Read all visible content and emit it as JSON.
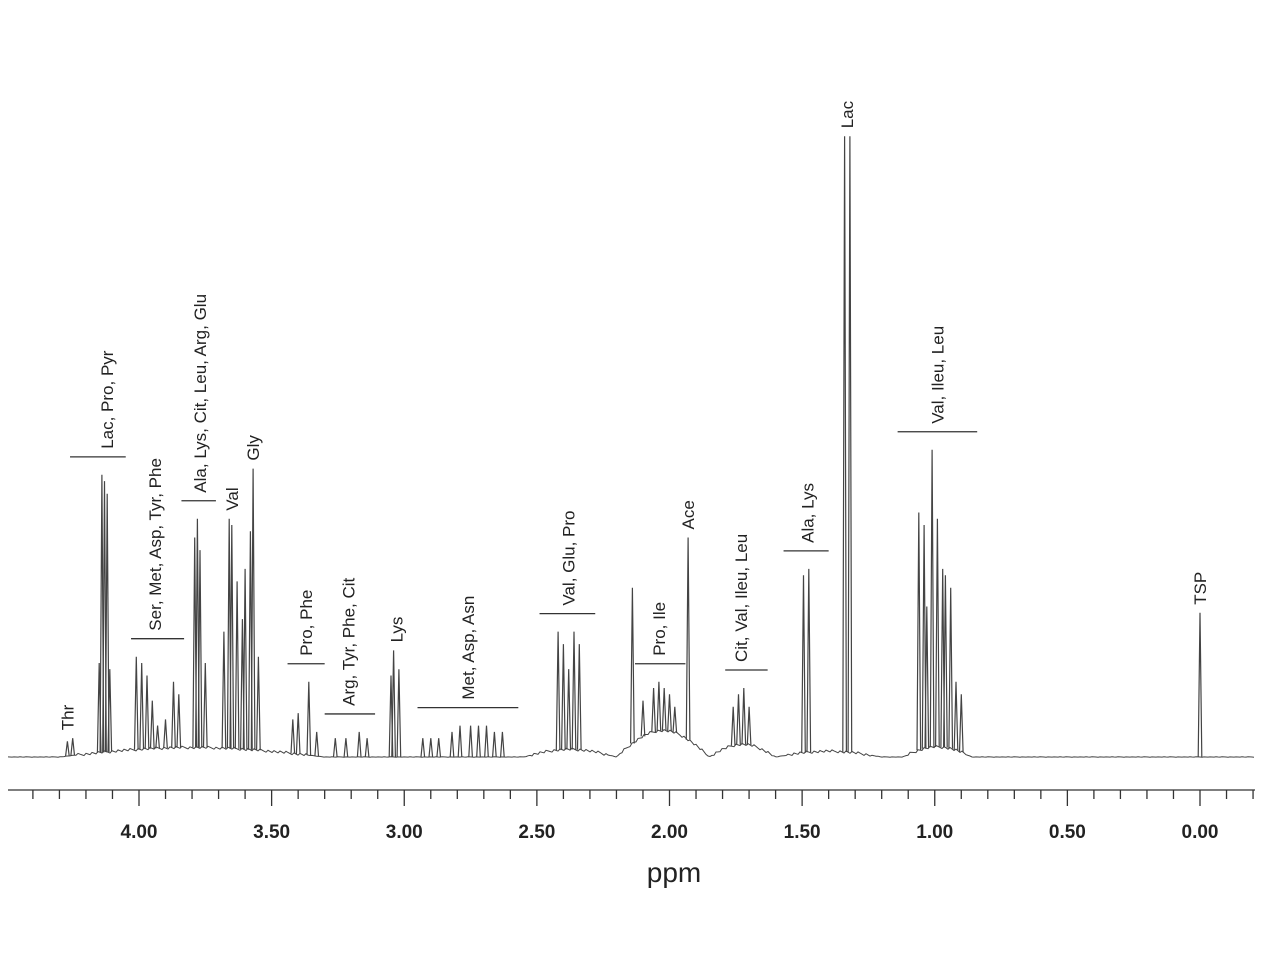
{
  "chart_data": {
    "type": "line",
    "xlabel": "ppm",
    "ylabel": "",
    "x_reversed": true,
    "xlim": [
      4.5,
      -0.2
    ],
    "ylim": [
      0,
      100
    ],
    "grid": false,
    "legend": "none",
    "colors": {
      "trace": "#444444",
      "axis": "#333333",
      "text": "#222222"
    },
    "ticks": [
      {
        "value": 4.0,
        "label": "4.00"
      },
      {
        "value": 3.5,
        "label": "3.50"
      },
      {
        "value": 3.0,
        "label": "3.00"
      },
      {
        "value": 2.5,
        "label": "2.50"
      },
      {
        "value": 2.0,
        "label": "2.00"
      },
      {
        "value": 1.5,
        "label": "1.50"
      },
      {
        "value": 1.0,
        "label": "1.00"
      },
      {
        "value": 0.5,
        "label": "0.50"
      },
      {
        "value": 0.0,
        "label": "0.00"
      }
    ],
    "peaks": [
      {
        "ppm": 4.27,
        "h": 2.5
      },
      {
        "ppm": 4.25,
        "h": 3
      },
      {
        "ppm": 4.15,
        "h": 15
      },
      {
        "ppm": 4.14,
        "h": 45
      },
      {
        "ppm": 4.13,
        "h": 44
      },
      {
        "ppm": 4.12,
        "h": 42
      },
      {
        "ppm": 4.11,
        "h": 14
      },
      {
        "ppm": 4.01,
        "h": 16
      },
      {
        "ppm": 3.99,
        "h": 15
      },
      {
        "ppm": 3.97,
        "h": 13
      },
      {
        "ppm": 3.95,
        "h": 9
      },
      {
        "ppm": 3.93,
        "h": 5
      },
      {
        "ppm": 3.9,
        "h": 6
      },
      {
        "ppm": 3.87,
        "h": 12
      },
      {
        "ppm": 3.85,
        "h": 10
      },
      {
        "ppm": 3.79,
        "h": 35
      },
      {
        "ppm": 3.78,
        "h": 38
      },
      {
        "ppm": 3.77,
        "h": 33
      },
      {
        "ppm": 3.75,
        "h": 15
      },
      {
        "ppm": 3.68,
        "h": 20
      },
      {
        "ppm": 3.66,
        "h": 38
      },
      {
        "ppm": 3.65,
        "h": 37
      },
      {
        "ppm": 3.63,
        "h": 28
      },
      {
        "ppm": 3.61,
        "h": 22
      },
      {
        "ppm": 3.6,
        "h": 30
      },
      {
        "ppm": 3.58,
        "h": 36
      },
      {
        "ppm": 3.57,
        "h": 46
      },
      {
        "ppm": 3.55,
        "h": 16
      },
      {
        "ppm": 3.42,
        "h": 6
      },
      {
        "ppm": 3.4,
        "h": 7
      },
      {
        "ppm": 3.36,
        "h": 12
      },
      {
        "ppm": 3.33,
        "h": 4
      },
      {
        "ppm": 3.26,
        "h": 3
      },
      {
        "ppm": 3.22,
        "h": 3
      },
      {
        "ppm": 3.17,
        "h": 4
      },
      {
        "ppm": 3.14,
        "h": 3
      },
      {
        "ppm": 3.05,
        "h": 13
      },
      {
        "ppm": 3.04,
        "h": 17
      },
      {
        "ppm": 3.02,
        "h": 14
      },
      {
        "ppm": 2.93,
        "h": 3
      },
      {
        "ppm": 2.9,
        "h": 3
      },
      {
        "ppm": 2.87,
        "h": 3
      },
      {
        "ppm": 2.82,
        "h": 4
      },
      {
        "ppm": 2.79,
        "h": 5
      },
      {
        "ppm": 2.75,
        "h": 5
      },
      {
        "ppm": 2.72,
        "h": 5
      },
      {
        "ppm": 2.69,
        "h": 5
      },
      {
        "ppm": 2.66,
        "h": 4
      },
      {
        "ppm": 2.63,
        "h": 4
      },
      {
        "ppm": 2.42,
        "h": 20
      },
      {
        "ppm": 2.4,
        "h": 18
      },
      {
        "ppm": 2.38,
        "h": 14
      },
      {
        "ppm": 2.36,
        "h": 20
      },
      {
        "ppm": 2.34,
        "h": 18
      },
      {
        "ppm": 2.14,
        "h": 27
      },
      {
        "ppm": 2.1,
        "h": 9
      },
      {
        "ppm": 2.06,
        "h": 11
      },
      {
        "ppm": 2.04,
        "h": 12
      },
      {
        "ppm": 2.02,
        "h": 11
      },
      {
        "ppm": 2.0,
        "h": 10
      },
      {
        "ppm": 1.98,
        "h": 8
      },
      {
        "ppm": 1.93,
        "h": 35
      },
      {
        "ppm": 1.76,
        "h": 8
      },
      {
        "ppm": 1.74,
        "h": 10
      },
      {
        "ppm": 1.72,
        "h": 11
      },
      {
        "ppm": 1.7,
        "h": 8
      },
      {
        "ppm": 1.495,
        "h": 29
      },
      {
        "ppm": 1.475,
        "h": 30
      },
      {
        "ppm": 1.34,
        "h": 99
      },
      {
        "ppm": 1.32,
        "h": 99
      },
      {
        "ppm": 1.06,
        "h": 39
      },
      {
        "ppm": 1.04,
        "h": 37
      },
      {
        "ppm": 1.03,
        "h": 24
      },
      {
        "ppm": 1.01,
        "h": 49
      },
      {
        "ppm": 0.99,
        "h": 38
      },
      {
        "ppm": 0.97,
        "h": 30
      },
      {
        "ppm": 0.96,
        "h": 29
      },
      {
        "ppm": 0.94,
        "h": 27
      },
      {
        "ppm": 0.92,
        "h": 12
      },
      {
        "ppm": 0.9,
        "h": 10
      },
      {
        "ppm": 0.0,
        "h": 23
      }
    ],
    "annotations": [
      {
        "text": "Thr",
        "ppm": 4.27,
        "bracket": null
      },
      {
        "text": "Lac, Pro, Pyr",
        "ppm": 4.12,
        "bracket": [
          4.26,
          4.05
        ]
      },
      {
        "text": "Ser, Met, Asp, Tyr, Phe",
        "ppm": 3.94,
        "bracket": [
          4.03,
          3.83
        ]
      },
      {
        "text": "Ala, Lys, Cit, Leu, Arg, Glu",
        "ppm": 3.77,
        "bracket": [
          3.84,
          3.71
        ]
      },
      {
        "text": "Val",
        "ppm": 3.65,
        "bracket": null
      },
      {
        "text": "Gly",
        "ppm": 3.57,
        "bracket": null
      },
      {
        "text": "Pro, Phe",
        "ppm": 3.37,
        "bracket": [
          3.44,
          3.3
        ]
      },
      {
        "text": "Arg, Tyr, Phe, Cit",
        "ppm": 3.21,
        "bracket": [
          3.3,
          3.11
        ]
      },
      {
        "text": "Lys",
        "ppm": 3.03,
        "bracket": null
      },
      {
        "text": "Met, Asp, Asn",
        "ppm": 2.76,
        "bracket": [
          2.95,
          2.57
        ]
      },
      {
        "text": "Val, Glu, Pro",
        "ppm": 2.38,
        "bracket": [
          2.49,
          2.28
        ]
      },
      {
        "text": "Pro, Ile",
        "ppm": 2.04,
        "bracket": [
          2.13,
          1.94
        ]
      },
      {
        "text": "Ace",
        "ppm": 1.93,
        "bracket": null
      },
      {
        "text": "Cit, Val, Ileu, Leu",
        "ppm": 1.73,
        "bracket": [
          1.79,
          1.63
        ]
      },
      {
        "text": "Ala, Lys",
        "ppm": 1.48,
        "bracket": [
          1.57,
          1.4
        ]
      },
      {
        "text": "Lac",
        "ppm": 1.33,
        "bracket": null
      },
      {
        "text": "Val, Ileu, Leu",
        "ppm": 0.99,
        "bracket": [
          1.14,
          0.84
        ]
      },
      {
        "text": "TSP",
        "ppm": 0.0,
        "bracket": null
      }
    ]
  }
}
